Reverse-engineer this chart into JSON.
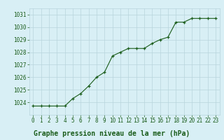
{
  "x": [
    0,
    1,
    2,
    3,
    4,
    5,
    6,
    7,
    8,
    9,
    10,
    11,
    12,
    13,
    14,
    15,
    16,
    17,
    18,
    19,
    20,
    21,
    22,
    23
  ],
  "y": [
    1023.7,
    1023.7,
    1023.7,
    1023.7,
    1023.7,
    1024.3,
    1024.7,
    1025.3,
    1026.0,
    1026.4,
    1027.7,
    1028.0,
    1028.3,
    1028.3,
    1028.3,
    1028.7,
    1029.0,
    1029.2,
    1030.4,
    1030.4,
    1030.7,
    1030.7,
    1030.7,
    1030.7
  ],
  "line_color": "#1a5c1a",
  "marker": "+",
  "bg_color": "#d8eff5",
  "grid_color": "#b8d4dc",
  "title": "Graphe pression niveau de la mer (hPa)",
  "ylim": [
    1023.0,
    1031.5
  ],
  "xlim": [
    -0.5,
    23.5
  ],
  "yticks": [
    1024,
    1025,
    1026,
    1027,
    1028,
    1029,
    1030,
    1031
  ],
  "xticks": [
    0,
    1,
    2,
    3,
    4,
    5,
    6,
    7,
    8,
    9,
    10,
    11,
    12,
    13,
    14,
    15,
    16,
    17,
    18,
    19,
    20,
    21,
    22,
    23
  ],
  "tick_color": "#1a5c1a",
  "title_color": "#1a5c1a",
  "title_fontsize": 7.0,
  "tick_fontsize": 5.5
}
